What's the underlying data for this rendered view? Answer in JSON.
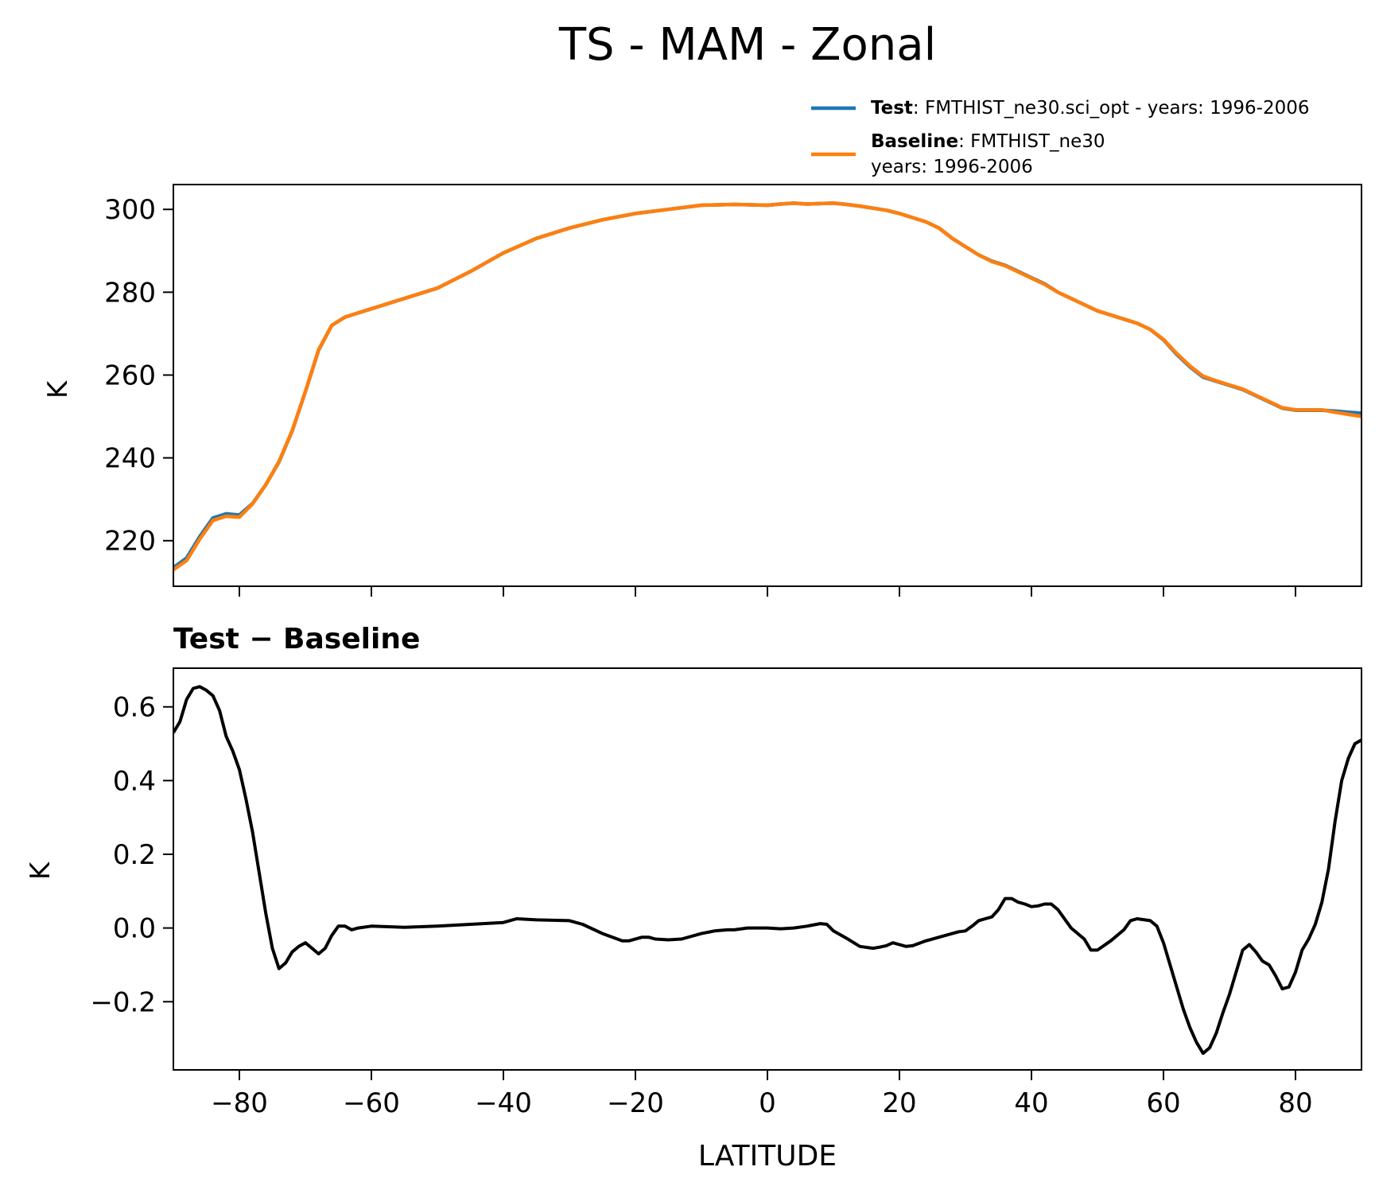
{
  "title": "TS - MAM - Zonal",
  "legend": {
    "placement": "top-right",
    "entries": [
      {
        "bold": "Test",
        "text": ": FMTHIST_ne30.sci_opt - years: 1996-2006",
        "text2": "",
        "color": "#1f77b4"
      },
      {
        "bold": "Baseline",
        "text": ": FMTHIST_ne30",
        "text2": "years: 1996-2006",
        "color": "#ff7f0e"
      }
    ]
  },
  "chart_data": [
    {
      "type": "line",
      "ylabel": "K",
      "xlim": [
        -90,
        90
      ],
      "ylim": [
        209,
        306
      ],
      "yticks": [
        220,
        240,
        260,
        280,
        300
      ],
      "ytick_labels": [
        "220",
        "240",
        "260",
        "280",
        "300"
      ],
      "xticks": [
        -80,
        -60,
        -40,
        -20,
        0,
        20,
        40,
        60,
        80
      ],
      "grid": false,
      "x": [
        -90,
        -88,
        -86,
        -84,
        -82,
        -80,
        -78,
        -76,
        -74,
        -72,
        -70,
        -68,
        -66,
        -64,
        -62,
        -60,
        -55,
        -50,
        -45,
        -40,
        -35,
        -30,
        -25,
        -20,
        -15,
        -10,
        -5,
        0,
        2,
        4,
        6,
        8,
        10,
        12,
        14,
        16,
        18,
        20,
        22,
        24,
        26,
        28,
        30,
        32,
        34,
        36,
        38,
        40,
        42,
        44,
        46,
        48,
        50,
        52,
        54,
        56,
        58,
        60,
        62,
        64,
        66,
        68,
        70,
        72,
        74,
        76,
        78,
        80,
        82,
        84,
        86,
        88,
        90
      ],
      "series": [
        {
          "name": "Test",
          "color": "#1f77b4",
          "values": [
            213.5,
            215.8,
            221.0,
            225.5,
            226.5,
            226.2,
            229.0,
            233.5,
            239.0,
            246.5,
            256.0,
            266.0,
            272.0,
            274.0,
            275.0,
            276.0,
            278.5,
            281.0,
            285.0,
            289.5,
            293.0,
            295.5,
            297.5,
            299.0,
            300.0,
            301.0,
            301.2,
            301.0,
            301.3,
            301.5,
            301.3,
            301.4,
            301.5,
            301.2,
            300.8,
            300.3,
            299.8,
            299.0,
            298.0,
            297.0,
            295.5,
            293.0,
            291.0,
            289.0,
            287.5,
            286.5,
            285.0,
            283.5,
            282.0,
            280.0,
            278.5,
            277.0,
            275.5,
            274.5,
            273.5,
            272.5,
            271.0,
            268.5,
            265.0,
            262.0,
            259.5,
            258.5,
            257.5,
            256.5,
            255.0,
            253.5,
            252.0,
            251.5,
            251.5,
            251.5,
            251.3,
            251.0,
            250.8
          ]
        },
        {
          "name": "Baseline",
          "color": "#ff7f0e",
          "values": [
            213.0,
            215.2,
            220.4,
            224.9,
            225.9,
            225.7,
            228.9,
            233.5,
            239.1,
            246.6,
            256.0,
            266.1,
            272.0,
            274.0,
            275.0,
            276.0,
            278.5,
            281.0,
            285.0,
            289.5,
            293.0,
            295.5,
            297.5,
            299.0,
            300.0,
            301.0,
            301.2,
            301.0,
            301.3,
            301.5,
            301.3,
            301.4,
            301.5,
            301.2,
            300.8,
            300.3,
            299.8,
            299.0,
            298.0,
            297.0,
            295.5,
            293.0,
            291.0,
            289.0,
            287.4,
            286.4,
            284.9,
            283.4,
            281.9,
            280.0,
            278.5,
            277.0,
            275.5,
            274.5,
            273.5,
            272.5,
            271.0,
            268.6,
            265.2,
            262.2,
            259.7,
            258.6,
            257.6,
            256.6,
            255.1,
            253.6,
            252.1,
            251.6,
            251.6,
            251.6,
            251.0,
            250.5,
            250.0
          ]
        }
      ]
    },
    {
      "type": "line",
      "title": "Test − Baseline",
      "ylabel": "K",
      "xlabel": "LATITUDE",
      "xlim": [
        -90,
        90
      ],
      "ylim": [
        -0.385,
        0.705
      ],
      "yticks": [
        -0.2,
        0.0,
        0.2,
        0.4,
        0.6
      ],
      "ytick_labels": [
        "−0.2",
        "0.0",
        "0.2",
        "0.4",
        "0.6"
      ],
      "xticks": [
        -80,
        -60,
        -40,
        -20,
        0,
        20,
        40,
        60,
        80
      ],
      "xtick_labels": [
        "−80",
        "−60",
        "−40",
        "−20",
        "0",
        "20",
        "40",
        "60",
        "80"
      ],
      "grid": false,
      "series": [
        {
          "color": "#000000",
          "x": [
            -90,
            -89,
            -88,
            -87,
            -86,
            -85,
            -84,
            -83,
            -82,
            -81,
            -80,
            -79,
            -78,
            -77,
            -76,
            -75,
            -74,
            -73,
            -72,
            -71,
            -70,
            -69,
            -68,
            -67,
            -66,
            -65,
            -64,
            -63,
            -62,
            -60,
            -55,
            -50,
            -45,
            -40,
            -38,
            -35,
            -30,
            -28,
            -25,
            -22,
            -21,
            -19,
            -18,
            -17,
            -15,
            -13,
            -10,
            -8,
            -6,
            -5,
            -3,
            -1,
            0,
            2,
            4,
            6,
            8,
            9,
            10,
            12,
            14,
            16,
            17,
            18,
            19,
            20,
            21,
            22,
            24,
            26,
            28,
            29,
            30,
            31,
            32,
            33,
            34,
            35,
            36,
            37,
            38,
            39,
            40,
            41,
            42,
            43,
            44,
            46,
            48,
            49,
            50,
            52,
            54,
            55,
            56,
            58,
            59,
            60,
            61,
            62,
            63,
            64,
            65,
            66,
            67,
            68,
            69,
            70,
            71,
            72,
            73,
            74,
            75,
            76,
            77,
            78,
            79,
            80,
            81,
            82,
            83,
            84,
            85,
            86,
            87,
            88,
            89,
            90
          ],
          "values": [
            0.53,
            0.56,
            0.62,
            0.65,
            0.655,
            0.645,
            0.63,
            0.59,
            0.52,
            0.48,
            0.43,
            0.35,
            0.26,
            0.15,
            0.04,
            -0.055,
            -0.11,
            -0.095,
            -0.065,
            -0.05,
            -0.04,
            -0.055,
            -0.07,
            -0.055,
            -0.02,
            0.005,
            0.005,
            -0.005,
            0.0,
            0.005,
            0.002,
            0.005,
            0.01,
            0.015,
            0.025,
            0.022,
            0.02,
            0.01,
            -0.015,
            -0.035,
            -0.035,
            -0.025,
            -0.025,
            -0.03,
            -0.032,
            -0.03,
            -0.015,
            -0.008,
            -0.005,
            -0.005,
            0.0,
            0.0,
            0.0,
            -0.002,
            0.0,
            0.005,
            0.012,
            0.01,
            -0.008,
            -0.028,
            -0.05,
            -0.055,
            -0.052,
            -0.048,
            -0.04,
            -0.045,
            -0.05,
            -0.048,
            -0.035,
            -0.025,
            -0.015,
            -0.01,
            -0.008,
            0.005,
            0.02,
            0.025,
            0.03,
            0.05,
            0.08,
            0.08,
            0.07,
            0.065,
            0.058,
            0.06,
            0.065,
            0.065,
            0.05,
            0.0,
            -0.03,
            -0.06,
            -0.06,
            -0.035,
            -0.005,
            0.02,
            0.025,
            0.02,
            0.005,
            -0.04,
            -0.1,
            -0.16,
            -0.22,
            -0.27,
            -0.31,
            -0.34,
            -0.325,
            -0.285,
            -0.23,
            -0.18,
            -0.12,
            -0.06,
            -0.045,
            -0.065,
            -0.09,
            -0.1,
            -0.13,
            -0.165,
            -0.16,
            -0.12,
            -0.06,
            -0.03,
            0.01,
            0.07,
            0.16,
            0.29,
            0.4,
            0.46,
            0.5,
            0.51
          ]
        }
      ]
    }
  ]
}
